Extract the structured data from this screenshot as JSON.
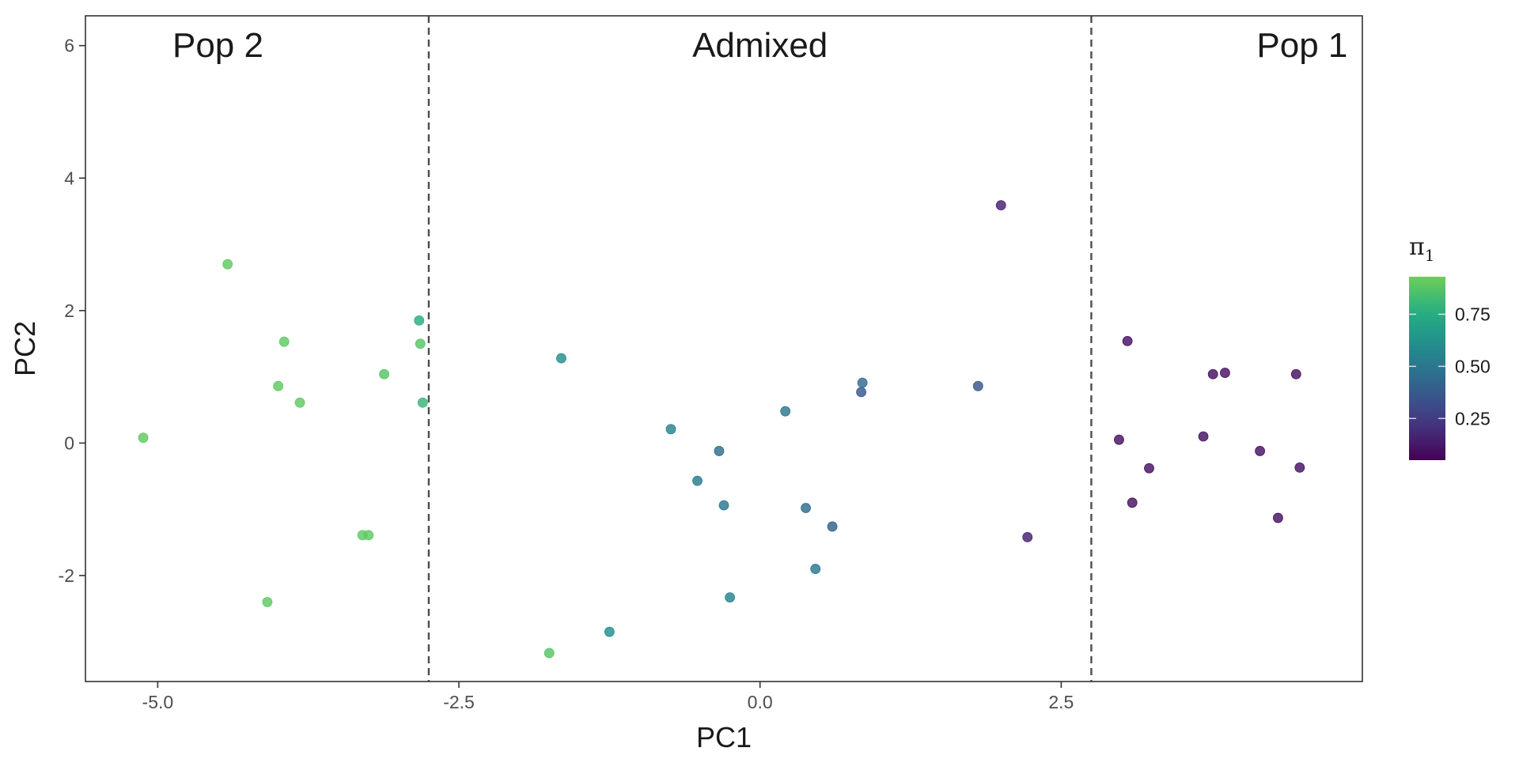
{
  "chart_data": {
    "type": "scatter",
    "xlabel": "PC1",
    "ylabel": "PC2",
    "xlim": [
      -5.6,
      5.0
    ],
    "ylim": [
      -3.6,
      6.45
    ],
    "x_ticks": [
      -5.0,
      -2.5,
      0.0,
      2.5
    ],
    "x_tick_labels": [
      "-5.0",
      "-2.5",
      "0.0",
      "2.5"
    ],
    "y_ticks": [
      -2,
      0,
      2,
      4,
      6
    ],
    "y_tick_labels": [
      "-2",
      "0",
      "2",
      "4",
      "6"
    ],
    "grid": false,
    "vlines": [
      -2.75,
      2.75
    ],
    "regions": [
      {
        "label": "Pop 2",
        "x": -4.5
      },
      {
        "label": "Admixed",
        "x": 0.0
      },
      {
        "label": "Pop 1",
        "x": 4.5
      }
    ],
    "color_scale": {
      "name": "viridis",
      "title": "π",
      "title_subscript": "1",
      "range": [
        0.05,
        0.93
      ],
      "ticks": [
        0.25,
        0.5,
        0.75
      ],
      "tick_labels": [
        "0.25",
        "0.50",
        "0.75"
      ],
      "placement": "right"
    },
    "points": [
      {
        "x": -5.12,
        "y": 0.08,
        "pi": 0.9
      },
      {
        "x": -4.42,
        "y": 2.7,
        "pi": 0.9
      },
      {
        "x": -4.09,
        "y": -2.4,
        "pi": 0.9
      },
      {
        "x": -4.0,
        "y": 0.86,
        "pi": 0.9
      },
      {
        "x": -3.95,
        "y": 1.53,
        "pi": 0.9
      },
      {
        "x": -3.82,
        "y": 0.61,
        "pi": 0.9
      },
      {
        "x": -3.3,
        "y": -1.39,
        "pi": 0.9
      },
      {
        "x": -3.25,
        "y": -1.39,
        "pi": 0.9
      },
      {
        "x": -3.12,
        "y": 1.04,
        "pi": 0.88
      },
      {
        "x": -2.83,
        "y": 1.85,
        "pi": 0.75
      },
      {
        "x": -2.82,
        "y": 1.5,
        "pi": 0.88
      },
      {
        "x": -2.8,
        "y": 0.61,
        "pi": 0.8
      },
      {
        "x": -1.75,
        "y": -3.17,
        "pi": 0.88
      },
      {
        "x": -1.65,
        "y": 1.28,
        "pi": 0.6
      },
      {
        "x": -1.25,
        "y": -2.85,
        "pi": 0.6
      },
      {
        "x": -0.74,
        "y": 0.21,
        "pi": 0.55
      },
      {
        "x": -0.52,
        "y": -0.57,
        "pi": 0.5
      },
      {
        "x": -0.34,
        "y": -0.12,
        "pi": 0.45
      },
      {
        "x": -0.3,
        "y": -0.94,
        "pi": 0.5
      },
      {
        "x": -0.25,
        "y": -2.33,
        "pi": 0.55
      },
      {
        "x": 0.21,
        "y": 0.48,
        "pi": 0.5
      },
      {
        "x": 0.38,
        "y": -0.98,
        "pi": 0.45
      },
      {
        "x": 0.46,
        "y": -1.9,
        "pi": 0.5
      },
      {
        "x": 0.6,
        "y": -1.26,
        "pi": 0.4
      },
      {
        "x": 0.84,
        "y": 0.77,
        "pi": 0.35
      },
      {
        "x": 0.85,
        "y": 0.91,
        "pi": 0.45
      },
      {
        "x": 1.81,
        "y": 0.86,
        "pi": 0.35
      },
      {
        "x": 2.0,
        "y": 3.59,
        "pi": 0.15
      },
      {
        "x": 2.22,
        "y": -1.42,
        "pi": 0.15
      },
      {
        "x": 2.98,
        "y": 0.05,
        "pi": 0.1
      },
      {
        "x": 3.05,
        "y": 1.54,
        "pi": 0.1
      },
      {
        "x": 3.09,
        "y": -0.9,
        "pi": 0.1
      },
      {
        "x": 3.23,
        "y": -0.38,
        "pi": 0.1
      },
      {
        "x": 3.68,
        "y": 0.1,
        "pi": 0.1
      },
      {
        "x": 3.76,
        "y": 1.04,
        "pi": 0.1
      },
      {
        "x": 3.86,
        "y": 1.06,
        "pi": 0.1
      },
      {
        "x": 4.15,
        "y": -0.12,
        "pi": 0.1
      },
      {
        "x": 4.3,
        "y": -1.13,
        "pi": 0.1
      },
      {
        "x": 4.45,
        "y": 1.04,
        "pi": 0.1
      },
      {
        "x": 4.48,
        "y": -0.37,
        "pi": 0.1
      }
    ]
  }
}
